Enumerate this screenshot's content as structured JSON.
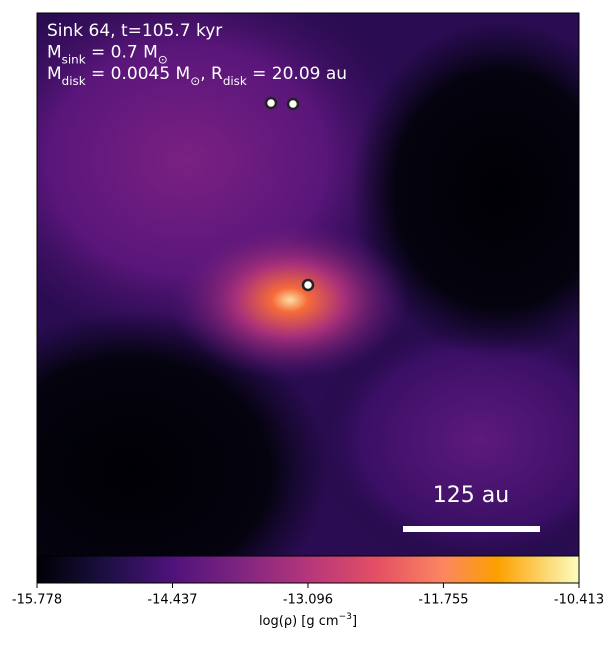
{
  "chart_data": {
    "type": "density-map",
    "annotations": [
      [
        {
          "text": "Sink 64, t=105.7 kyr"
        }
      ],
      [
        {
          "text": "M"
        },
        {
          "sub": "sink"
        },
        {
          "text": " = 0.7 M"
        },
        {
          "sub": "⊙"
        }
      ],
      [
        {
          "text": "M"
        },
        {
          "sub": "disk"
        },
        {
          "text": " = 0.0045 M"
        },
        {
          "sub": "⊙"
        },
        {
          "text": ", R"
        },
        {
          "sub": "disk"
        },
        {
          "text": " = 20.09 au"
        }
      ]
    ],
    "scale_bar_label": "125 au",
    "colorbar": {
      "label": [
        {
          "text": "log(ρ) [g cm"
        },
        {
          "sup": "−3"
        },
        {
          "text": "]"
        }
      ],
      "lim": [
        -15.778,
        -10.413
      ],
      "ticks": [
        -15.778,
        -14.437,
        -13.096,
        -11.755,
        -10.413
      ],
      "colormap": "magma"
    }
  }
}
